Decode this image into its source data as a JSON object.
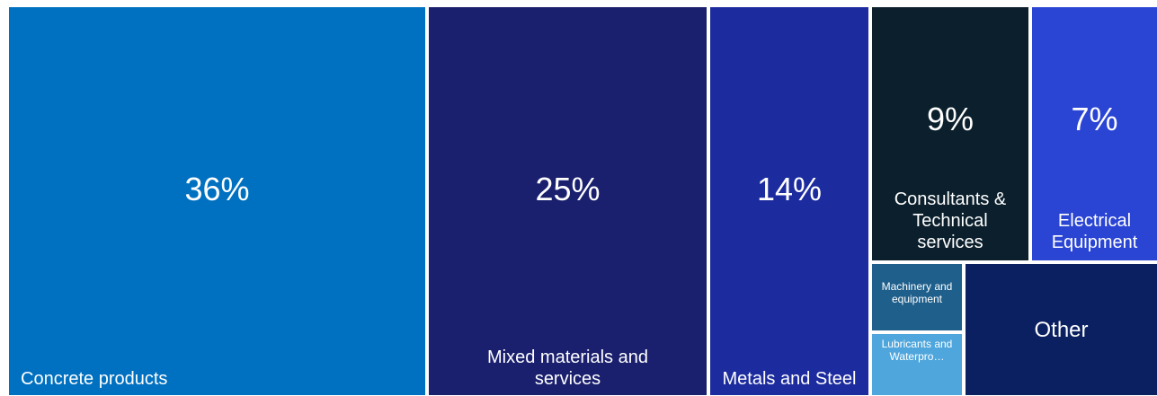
{
  "chart_data": {
    "type": "treemap",
    "items": [
      {
        "label": "Concrete products",
        "value": "36%",
        "color": "#0070c0"
      },
      {
        "label": "Mixed materials and services",
        "value": "25%",
        "color": "#1a1f6e"
      },
      {
        "label": "Metals and Steel",
        "value": "14%",
        "color": "#1c2b9e"
      },
      {
        "label": "Consultants & Technical services",
        "value": "9%",
        "color": "#0b1f2c"
      },
      {
        "label": "Electrical Equipment",
        "value": "7%",
        "color": "#2a44d4"
      },
      {
        "label": "Machinery and equipment",
        "value": "",
        "color": "#1f5f8b"
      },
      {
        "label": "Lubricants and Waterpro…",
        "value": "",
        "color": "#4fa6dc"
      },
      {
        "label": "Other",
        "value": "",
        "color": "#0a2060"
      }
    ]
  }
}
